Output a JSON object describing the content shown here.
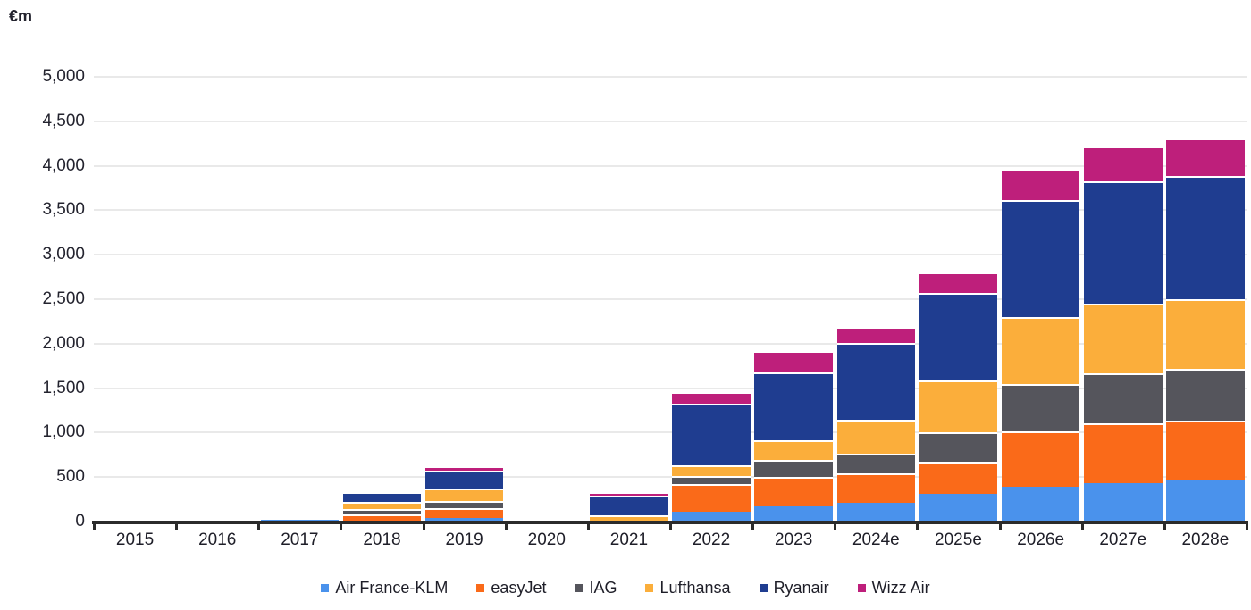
{
  "chart_data": {
    "type": "bar",
    "stacked": true,
    "title": "",
    "ylabel": "€m",
    "xlabel": "",
    "grid": "horizontal",
    "legend_position": "bottom",
    "ylim": [
      0,
      5000
    ],
    "ytick_interval": 500,
    "ytick_labels": [
      "0",
      "500",
      "1,000",
      "1,500",
      "2,000",
      "2,500",
      "3,000",
      "3,500",
      "4,000",
      "4,500",
      "5,000"
    ],
    "categories": [
      "2015",
      "2016",
      "2017",
      "2018",
      "2019",
      "2020",
      "2021",
      "2022",
      "2023",
      "2024e",
      "2025e",
      "2026e",
      "2027e",
      "2028e"
    ],
    "series": [
      {
        "name": "Air France-KLM",
        "color": "#4A92EC",
        "values": [
          15,
          0,
          25,
          5,
          40,
          0,
          10,
          110,
          170,
          210,
          310,
          395,
          430,
          460
        ]
      },
      {
        "name": "easyJet",
        "color": "#FA6A19",
        "values": [
          0,
          0,
          0,
          80,
          115,
          0,
          0,
          310,
          330,
          330,
          360,
          615,
          680,
          680
        ]
      },
      {
        "name": "IAG",
        "color": "#55555C",
        "values": [
          0,
          0,
          0,
          55,
          80,
          0,
          0,
          90,
          190,
          225,
          330,
          540,
          555,
          575
        ]
      },
      {
        "name": "Lufthansa",
        "color": "#FBAE3B",
        "values": [
          0,
          0,
          0,
          80,
          140,
          0,
          60,
          120,
          220,
          385,
          590,
          750,
          790,
          790
        ]
      },
      {
        "name": "Ryanair",
        "color": "#1F3D90",
        "values": [
          0,
          0,
          0,
          110,
          200,
          0,
          220,
          690,
          770,
          860,
          980,
          1310,
          1375,
          1385
        ]
      },
      {
        "name": "Wizz Air",
        "color": "#BE1F7B",
        "values": [
          0,
          0,
          0,
          0,
          50,
          0,
          45,
          140,
          240,
          175,
          230,
          350,
          385,
          415
        ]
      }
    ]
  },
  "style_colors": {
    "grid": "#e9e9e9",
    "axis": "#2b2b2b",
    "text": "#23232e"
  }
}
